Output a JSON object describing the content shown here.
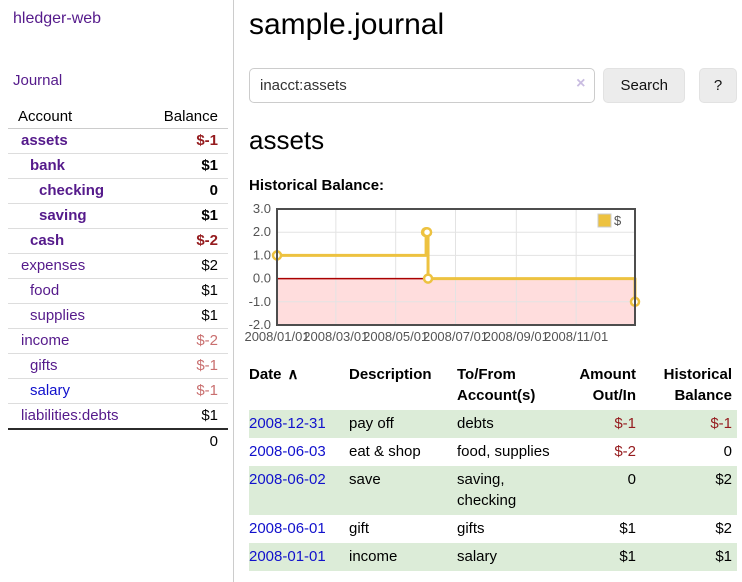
{
  "colors": {
    "accent_purple": "#551a8b",
    "link_blue": "#1111cc",
    "negative_strong": "#951b1e",
    "negative_soft": "#c96f6f",
    "stripe_green": "#dcecd8",
    "chart_yellow": "#edc240",
    "chart_negative_region": "#ffdddd",
    "chart_zero_line": "#aa0000",
    "chart_grid": "#e3e3e3",
    "chart_border": "#4d4d4d"
  },
  "app": {
    "brand": "hledger-web",
    "nav_journal": "Journal"
  },
  "sidebar": {
    "header": {
      "account": "Account",
      "balance": "Balance"
    },
    "accounts": [
      {
        "name": "assets",
        "depth": 1,
        "bold": true,
        "blue": false,
        "balance": "$-1",
        "balance_style": "strong-neg"
      },
      {
        "name": "bank",
        "depth": 2,
        "bold": true,
        "blue": false,
        "balance": "$1",
        "balance_style": "strong"
      },
      {
        "name": "checking",
        "depth": 3,
        "bold": true,
        "blue": false,
        "balance": "0",
        "balance_style": "strong"
      },
      {
        "name": "saving",
        "depth": 3,
        "bold": true,
        "blue": false,
        "balance": "$1",
        "balance_style": "strong"
      },
      {
        "name": "cash",
        "depth": 2,
        "bold": true,
        "blue": false,
        "balance": "$-2",
        "balance_style": "strong-neg"
      },
      {
        "name": "expenses",
        "depth": 1,
        "bold": false,
        "blue": false,
        "balance": "$2",
        "balance_style": "plain"
      },
      {
        "name": "food",
        "depth": 2,
        "bold": false,
        "blue": false,
        "balance": "$1",
        "balance_style": "plain"
      },
      {
        "name": "supplies",
        "depth": 2,
        "bold": false,
        "blue": false,
        "balance": "$1",
        "balance_style": "plain"
      },
      {
        "name": "income",
        "depth": 1,
        "bold": false,
        "blue": false,
        "balance": "$-2",
        "balance_style": "soft-neg"
      },
      {
        "name": "gifts",
        "depth": 2,
        "bold": false,
        "blue": false,
        "balance": "$-1",
        "balance_style": "soft-neg"
      },
      {
        "name": "salary",
        "depth": 2,
        "bold": false,
        "blue": true,
        "balance": "$-1",
        "balance_style": "soft-neg"
      },
      {
        "name": "liabilities:debts",
        "depth": 1,
        "bold": false,
        "blue": false,
        "balance": "$1",
        "balance_style": "plain"
      }
    ],
    "total": "0"
  },
  "header": {
    "title": "sample.journal"
  },
  "search": {
    "value": "inacct:assets",
    "clear_icon": "×",
    "search_label": "Search",
    "help_label": "?"
  },
  "main": {
    "heading": "assets",
    "section_title": "Historical Balance:"
  },
  "chart_data": {
    "type": "line",
    "step": true,
    "title": "Historical Balance:",
    "series": [
      {
        "name": "$",
        "color": "#edc240",
        "points": [
          [
            "2008-01-01",
            1
          ],
          [
            "2008-06-01",
            2
          ],
          [
            "2008-06-02",
            2
          ],
          [
            "2008-06-03",
            0
          ],
          [
            "2008-12-31",
            -1
          ]
        ]
      }
    ],
    "xlim": [
      "2008-01-01",
      "2008-12-31"
    ],
    "ylim": [
      -2,
      3
    ],
    "yticks": [
      "3.0",
      "2.0",
      "1.0",
      "0.0",
      "-1.0",
      "-2.0"
    ],
    "xticks": [
      "2008/01/01",
      "2008/03/01",
      "2008/05/01",
      "2008/07/01",
      "2008/09/01",
      "2008/11/01"
    ],
    "legend": {
      "label": "$",
      "position": "top-right"
    },
    "grid": true
  },
  "register": {
    "sort_icon": "∧",
    "headers": [
      {
        "lines": [
          "Date"
        ],
        "align": "left",
        "sortable": true
      },
      {
        "lines": [
          "Description"
        ],
        "align": "left",
        "sortable": false
      },
      {
        "lines": [
          "To/From",
          "Account(s)"
        ],
        "align": "left",
        "sortable": false
      },
      {
        "lines": [
          "Amount",
          "Out/In"
        ],
        "align": "right",
        "sortable": false
      },
      {
        "lines": [
          "Historical",
          "Balance"
        ],
        "align": "right",
        "sortable": false
      }
    ],
    "rows": [
      {
        "date": "2008-12-31",
        "description": "pay off",
        "accounts_lines": [
          "debts"
        ],
        "amount": "$-1",
        "amount_neg": true,
        "balance": "$-1",
        "balance_neg": true
      },
      {
        "date": "2008-06-03",
        "description": "eat & shop",
        "accounts_lines": [
          "food, supplies"
        ],
        "amount": "$-2",
        "amount_neg": true,
        "balance": "0",
        "balance_neg": false
      },
      {
        "date": "2008-06-02",
        "description": "save",
        "accounts_lines": [
          "saving,",
          "checking"
        ],
        "amount": "0",
        "amount_neg": false,
        "balance": "$2",
        "balance_neg": false
      },
      {
        "date": "2008-06-01",
        "description": "gift",
        "accounts_lines": [
          "gifts"
        ],
        "amount": "$1",
        "amount_neg": false,
        "balance": "$2",
        "balance_neg": false
      },
      {
        "date": "2008-01-01",
        "description": "income",
        "accounts_lines": [
          "salary"
        ],
        "amount": "$1",
        "amount_neg": false,
        "balance": "$1",
        "balance_neg": false
      }
    ]
  }
}
